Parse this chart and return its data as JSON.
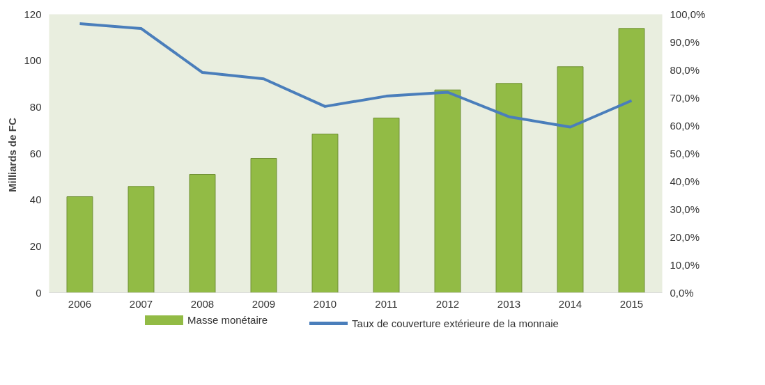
{
  "chart_data": {
    "type": "bar",
    "ylabel": "Milliards  de FC",
    "categories": [
      "2006",
      "2007",
      "2008",
      "2009",
      "2010",
      "2011",
      "2012",
      "2013",
      "2014",
      "2015"
    ],
    "series": [
      {
        "name": "Masse monétaire",
        "type": "bar",
        "color": "#92bb45",
        "values": [
          41.4,
          45.8,
          51.0,
          57.9,
          68.4,
          75.3,
          87.4,
          90.2,
          97.4,
          113.9
        ]
      },
      {
        "name": "Taux de couverture extérieure de la monnaie",
        "type": "line",
        "axis": "y2",
        "color": "#4a7ebb",
        "values": [
          96.6,
          94.9,
          79.1,
          76.8,
          66.9,
          70.6,
          72.0,
          63.2,
          59.5,
          69.0
        ]
      }
    ],
    "ylim": [
      0,
      120
    ],
    "yticks": [
      0,
      20,
      40,
      60,
      80,
      100,
      120
    ],
    "y2lim": [
      0,
      100
    ],
    "y2ticks": [
      {
        "value": 0,
        "label": "0,0%"
      },
      {
        "value": 10,
        "label": "10,0%"
      },
      {
        "value": 20,
        "label": "20,0%"
      },
      {
        "value": 30,
        "label": "30,0%"
      },
      {
        "value": 40,
        "label": "40,0%"
      },
      {
        "value": 50,
        "label": "50,0%"
      },
      {
        "value": 60,
        "label": "60,0%"
      },
      {
        "value": 70,
        "label": "70,0%"
      },
      {
        "value": 80,
        "label": "80,0%"
      },
      {
        "value": 90,
        "label": "90,0%"
      },
      {
        "value": 100,
        "label": "100,0%"
      }
    ],
    "grid": false,
    "legend": "bottom",
    "marker": "none",
    "line_style": "solid"
  }
}
